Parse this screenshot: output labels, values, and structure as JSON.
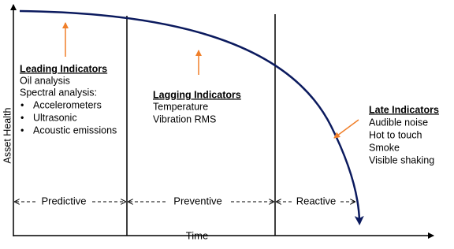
{
  "axes": {
    "y_label": "Asset Health",
    "x_label": "Time"
  },
  "phases": [
    {
      "label": "Leading Indicators",
      "items": [
        "Oil analysis",
        "Spectral analysis:"
      ],
      "bullets": [
        "Accelerometers",
        "Ultrasonic",
        "Acoustic emissions"
      ]
    },
    {
      "label": "Lagging Indicators",
      "items": [
        "Temperature",
        "Vibration RMS"
      ]
    },
    {
      "label": "Late Indicators",
      "items": [
        "Audible noise",
        "Hot to touch",
        "Smoke",
        "Visible shaking"
      ]
    }
  ],
  "regions": [
    "Predictive",
    "Preventive",
    "Reactive"
  ]
}
